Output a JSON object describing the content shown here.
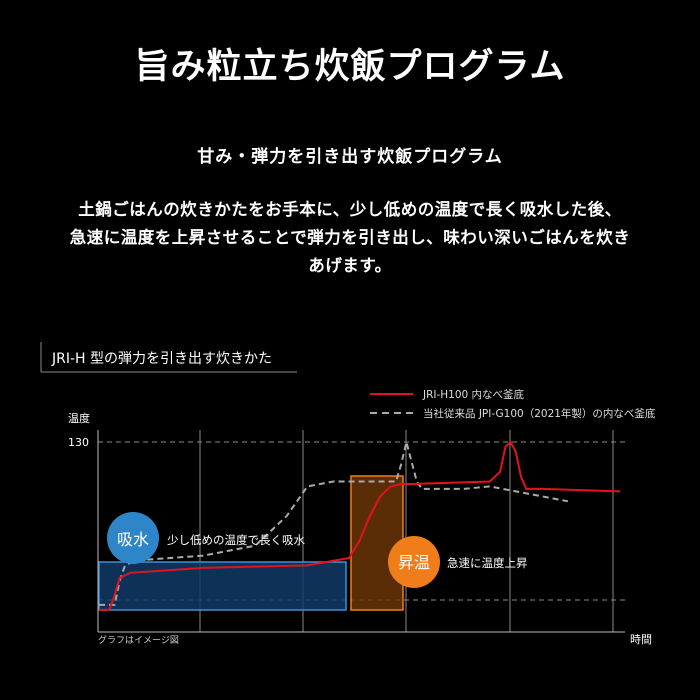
{
  "title": "旨み粒立ち炊飯プログラム",
  "subtitle": "甘み・弾力を引き出す炊飯プログラム",
  "description": [
    "土鍋ごはんの炊きかたをお手本に、少し低めの温度で長く吸水した後、",
    "急速に温度を上昇させることで弾力を引き出し、味わい深いごはんを炊き",
    "あげます。"
  ],
  "chart_data": {
    "type": "line",
    "title": "JRI-H 型の弾力を引き出す炊きかた",
    "ylabel": "温度",
    "xlabel": "時間",
    "ytick": "130",
    "ylim": [
      55,
      150
    ],
    "xlim": [
      0,
      100
    ],
    "grid": true,
    "legend_position": "top-right",
    "note": "グラフはイメージ図",
    "series": [
      {
        "name": "JRI-H100 内なべ釜底",
        "color": "#e0141e",
        "style": "solid",
        "x": [
          0,
          2,
          3,
          4,
          6,
          20,
          40,
          48,
          50,
          52,
          54,
          56,
          58,
          60,
          75,
          77,
          78,
          79,
          80,
          81,
          82,
          85,
          100
        ],
        "y": [
          62,
          62,
          68,
          75,
          77,
          79,
          80,
          83,
          90,
          100,
          108,
          112,
          113,
          113,
          114,
          118,
          128,
          130,
          126,
          116,
          111,
          111,
          110
        ]
      },
      {
        "name": "当社従来品 JPI-G100（2021年製）の内なべ釜底",
        "color": "#aaaaaa",
        "style": "dashed",
        "x": [
          0,
          3,
          4,
          5,
          7,
          20,
          30,
          36,
          40,
          45,
          50,
          57,
          58,
          59,
          60,
          61,
          62,
          63,
          64,
          70,
          75,
          80,
          85,
          90
        ],
        "y": [
          64,
          64,
          74,
          80,
          82,
          84,
          88,
          100,
          112,
          114,
          114,
          114,
          121,
          130,
          122,
          114,
          111,
          111,
          111,
          111,
          112,
          110,
          108,
          106
        ]
      }
    ],
    "annotations": [
      {
        "badge": "吸水",
        "text": "少し低めの温度で長く吸水",
        "color": "#2e86c8"
      },
      {
        "badge": "昇温",
        "text": "急速に温度上昇",
        "color": "#ef7d1a"
      }
    ]
  }
}
